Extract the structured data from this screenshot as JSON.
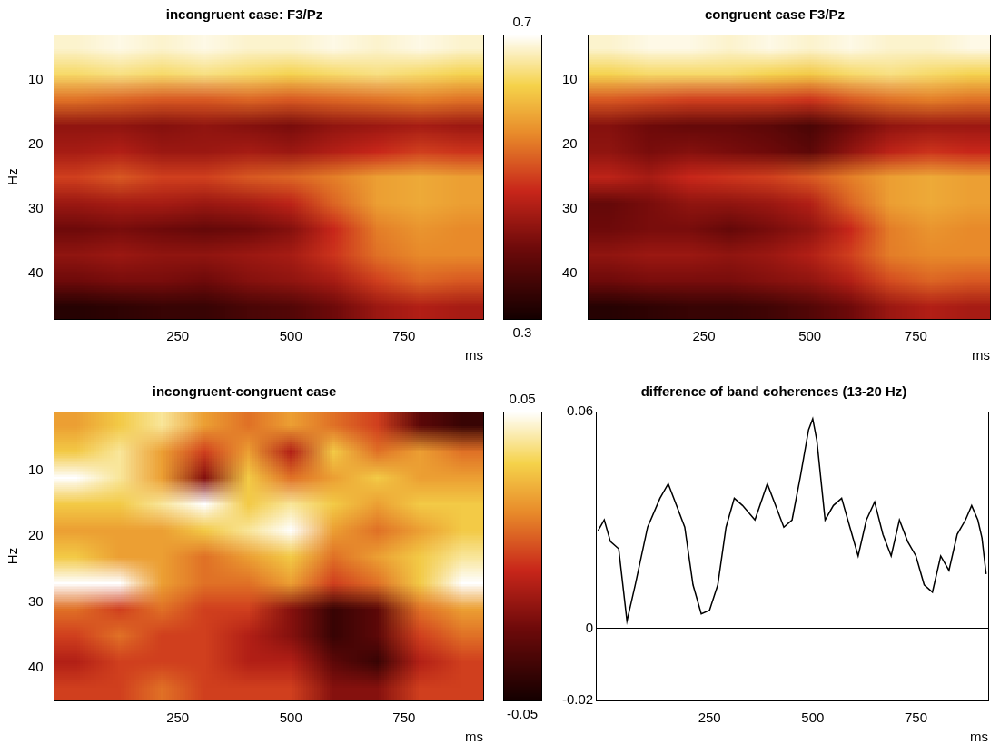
{
  "chart_data": [
    {
      "type": "heatmap",
      "title": "incongruent case: F3/Pz",
      "xlabel": "ms",
      "ylabel": "Hz",
      "x": [
        22.5,
        117.5,
        212.5,
        307.5,
        402.5,
        497.5,
        592.5,
        687.5,
        782.5,
        877.5
      ],
      "y": [
        5,
        9,
        13,
        17,
        21,
        25,
        29,
        33,
        37,
        41,
        45
      ],
      "z": [
        [
          0.68,
          0.69,
          0.68,
          0.69,
          0.68,
          0.68,
          0.69,
          0.68,
          0.69,
          0.68
        ],
        [
          0.64,
          0.65,
          0.64,
          0.65,
          0.64,
          0.63,
          0.64,
          0.65,
          0.64,
          0.63
        ],
        [
          0.54,
          0.53,
          0.52,
          0.52,
          0.53,
          0.52,
          0.53,
          0.54,
          0.55,
          0.54
        ],
        [
          0.43,
          0.43,
          0.42,
          0.43,
          0.42,
          0.41,
          0.43,
          0.44,
          0.45,
          0.44
        ],
        [
          0.45,
          0.46,
          0.44,
          0.44,
          0.45,
          0.44,
          0.46,
          0.48,
          0.5,
          0.49
        ],
        [
          0.5,
          0.52,
          0.5,
          0.5,
          0.52,
          0.53,
          0.55,
          0.58,
          0.59,
          0.58
        ],
        [
          0.44,
          0.45,
          0.45,
          0.44,
          0.45,
          0.47,
          0.53,
          0.58,
          0.59,
          0.58
        ],
        [
          0.4,
          0.41,
          0.4,
          0.39,
          0.4,
          0.42,
          0.48,
          0.55,
          0.57,
          0.56
        ],
        [
          0.43,
          0.44,
          0.43,
          0.43,
          0.44,
          0.45,
          0.49,
          0.54,
          0.56,
          0.56
        ],
        [
          0.4,
          0.41,
          0.41,
          0.4,
          0.42,
          0.43,
          0.45,
          0.5,
          0.53,
          0.52
        ],
        [
          0.32,
          0.33,
          0.34,
          0.34,
          0.36,
          0.37,
          0.4,
          0.44,
          0.46,
          0.45
        ]
      ],
      "xlim": [
        -25,
        925
      ],
      "ylim": [
        47,
        3
      ],
      "xticks": [
        250,
        500,
        750
      ],
      "yticks": [
        10,
        20,
        30,
        40
      ],
      "colorbar": {
        "range": [
          0.3,
          0.7
        ],
        "ticks": [
          0.3,
          0.7
        ]
      }
    },
    {
      "type": "heatmap",
      "title": "congruent case F3/Pz",
      "xlabel": "ms",
      "x": [
        22.5,
        117.5,
        212.5,
        307.5,
        402.5,
        497.5,
        592.5,
        687.5,
        782.5,
        877.5
      ],
      "y": [
        5,
        9,
        13,
        17,
        21,
        25,
        29,
        33,
        37,
        41,
        45
      ],
      "z": [
        [
          0.68,
          0.69,
          0.69,
          0.68,
          0.69,
          0.68,
          0.69,
          0.68,
          0.68,
          0.69
        ],
        [
          0.63,
          0.64,
          0.64,
          0.64,
          0.63,
          0.62,
          0.64,
          0.65,
          0.64,
          0.63
        ],
        [
          0.52,
          0.51,
          0.5,
          0.5,
          0.5,
          0.49,
          0.52,
          0.54,
          0.55,
          0.54
        ],
        [
          0.42,
          0.4,
          0.39,
          0.39,
          0.38,
          0.36,
          0.4,
          0.43,
          0.44,
          0.44
        ],
        [
          0.43,
          0.41,
          0.42,
          0.41,
          0.4,
          0.38,
          0.43,
          0.47,
          0.49,
          0.48
        ],
        [
          0.47,
          0.45,
          0.48,
          0.49,
          0.5,
          0.52,
          0.55,
          0.58,
          0.59,
          0.58
        ],
        [
          0.39,
          0.41,
          0.43,
          0.43,
          0.44,
          0.46,
          0.53,
          0.58,
          0.59,
          0.58
        ],
        [
          0.4,
          0.41,
          0.41,
          0.39,
          0.41,
          0.43,
          0.48,
          0.55,
          0.57,
          0.56
        ],
        [
          0.43,
          0.44,
          0.44,
          0.43,
          0.44,
          0.46,
          0.5,
          0.55,
          0.56,
          0.56
        ],
        [
          0.4,
          0.41,
          0.41,
          0.41,
          0.42,
          0.43,
          0.46,
          0.51,
          0.53,
          0.52
        ],
        [
          0.32,
          0.33,
          0.34,
          0.34,
          0.35,
          0.37,
          0.4,
          0.44,
          0.46,
          0.45
        ]
      ],
      "xlim": [
        -25,
        925
      ],
      "ylim": [
        47,
        3
      ],
      "xticks": [
        250,
        500,
        750
      ],
      "yticks": [
        10,
        20,
        30,
        40
      ]
    },
    {
      "type": "heatmap",
      "title": "incongruent-congruent case",
      "xlabel": "ms",
      "ylabel": "Hz",
      "x": [
        22.5,
        117.5,
        212.5,
        307.5,
        402.5,
        497.5,
        592.5,
        687.5,
        782.5,
        877.5
      ],
      "y": [
        3,
        7,
        11,
        15,
        19,
        23,
        27,
        31,
        35,
        39,
        43
      ],
      "z": [
        [
          0.02,
          0.03,
          0.04,
          0.02,
          0.01,
          0.02,
          0.01,
          0.0,
          -0.03,
          -0.04
        ],
        [
          0.03,
          0.04,
          0.02,
          0.0,
          0.02,
          -0.01,
          0.03,
          0.01,
          0.02,
          0.01
        ],
        [
          0.05,
          0.04,
          0.02,
          -0.02,
          0.03,
          0.01,
          0.02,
          0.03,
          0.02,
          0.02
        ],
        [
          0.03,
          0.03,
          0.04,
          0.05,
          0.03,
          0.04,
          0.03,
          0.02,
          0.03,
          0.03
        ],
        [
          0.02,
          0.02,
          0.02,
          0.03,
          0.04,
          0.05,
          0.02,
          0.01,
          0.02,
          0.03
        ],
        [
          0.03,
          0.02,
          0.02,
          0.01,
          0.02,
          0.03,
          0.01,
          0.02,
          0.03,
          0.04
        ],
        [
          0.05,
          0.05,
          0.02,
          0.01,
          0.01,
          0.02,
          0.0,
          0.01,
          0.03,
          0.05
        ],
        [
          0.01,
          0.0,
          0.01,
          0.0,
          0.0,
          -0.02,
          -0.04,
          -0.03,
          0.01,
          0.02
        ],
        [
          0.0,
          0.01,
          0.0,
          0.0,
          -0.01,
          -0.02,
          -0.04,
          -0.03,
          0.0,
          0.01
        ],
        [
          -0.01,
          0.0,
          0.0,
          0.0,
          -0.01,
          -0.01,
          -0.03,
          -0.04,
          -0.01,
          0.0
        ],
        [
          0.0,
          0.0,
          0.01,
          0.0,
          0.0,
          0.0,
          -0.02,
          -0.02,
          0.0,
          0.0
        ]
      ],
      "xlim": [
        -25,
        925
      ],
      "ylim": [
        45,
        1
      ],
      "xticks": [
        250,
        500,
        750
      ],
      "yticks": [
        10,
        20,
        30,
        40
      ],
      "colorbar": {
        "range": [
          -0.05,
          0.05
        ],
        "ticks": [
          -0.05,
          0.05
        ]
      }
    },
    {
      "type": "line",
      "title": "difference of band coherences (13-20 Hz)",
      "xlabel": "ms",
      "color": "#000000",
      "x": [
        -20,
        -5,
        10,
        30,
        50,
        70,
        100,
        130,
        150,
        170,
        190,
        210,
        230,
        250,
        270,
        290,
        310,
        330,
        360,
        390,
        410,
        430,
        450,
        470,
        490,
        500,
        510,
        530,
        550,
        570,
        590,
        610,
        630,
        650,
        670,
        690,
        710,
        730,
        750,
        770,
        790,
        810,
        830,
        850,
        870,
        885,
        900,
        910,
        920
      ],
      "values": [
        0.027,
        0.03,
        0.024,
        0.022,
        0.002,
        0.012,
        0.028,
        0.036,
        0.04,
        0.034,
        0.028,
        0.012,
        0.004,
        0.005,
        0.012,
        0.028,
        0.036,
        0.034,
        0.03,
        0.04,
        0.034,
        0.028,
        0.03,
        0.042,
        0.055,
        0.058,
        0.052,
        0.03,
        0.034,
        0.036,
        0.028,
        0.02,
        0.03,
        0.035,
        0.026,
        0.02,
        0.03,
        0.024,
        0.02,
        0.012,
        0.01,
        0.02,
        0.016,
        0.026,
        0.03,
        0.034,
        0.03,
        0.025,
        0.015
      ],
      "xlim": [
        -25,
        925
      ],
      "ylim": [
        -0.02,
        0.06
      ],
      "xticks": [
        250,
        500,
        750
      ],
      "yticks": [
        -0.02,
        0,
        0.06
      ]
    }
  ]
}
